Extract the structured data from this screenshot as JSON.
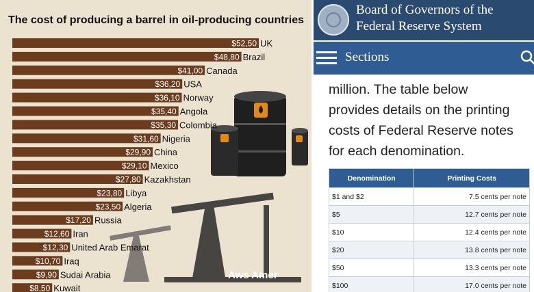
{
  "left": {
    "title": "The cost of producing a barrel in oil-producing countries",
    "watermark": "Aws Amer",
    "colors": {
      "bar": "#6b3c1d",
      "background": "#ece2d0"
    }
  },
  "chart_data": {
    "type": "bar",
    "orientation": "horizontal",
    "title": "The cost of producing a barrel in oil-producing countries",
    "categories": [
      "UK",
      "Brazil",
      "Canada",
      "USA",
      "Norway",
      "Angola",
      "Colombia",
      "Nigeria",
      "China",
      "Mexico",
      "Kazakhstan",
      "Libya",
      "Algeria",
      "Russia",
      "Iran",
      "United Arab Emarat",
      "Iraq",
      "Sudai Arabia",
      "Kuwait"
    ],
    "values": [
      52.5,
      48.8,
      41.0,
      36.2,
      36.1,
      35.4,
      35.3,
      31.6,
      29.9,
      29.1,
      27.8,
      23.8,
      23.5,
      17.2,
      12.6,
      12.3,
      10.7,
      9.9,
      8.5
    ],
    "value_labels": [
      "$52,50",
      "$48,80",
      "$41,00",
      "$36,20",
      "$36,10",
      "$35,40",
      "$35,30",
      "$31,60",
      "$29,90",
      "$29,10",
      "$27,80",
      "$23,80",
      "$23,50",
      "$17,20",
      "$12,60",
      "$12,30",
      "$10,70",
      "$9,90",
      "$8,50"
    ],
    "xlim": [
      0,
      52.5
    ],
    "grid": false,
    "legend": "none"
  },
  "fed": {
    "title_line1": "Board of Governors of the",
    "title_line2": "Federal Reserve System",
    "nav_label": "Sections",
    "paragraph_lines": [
      "million. The table below",
      "provides details on the printing",
      "costs of Federal Reserve notes",
      "for each denomination."
    ],
    "table": {
      "headers": [
        "Denomination",
        "Printing Costs"
      ],
      "rows": [
        [
          "$1 and $2",
          "7.5 cents per note"
        ],
        [
          "$5",
          "12.7 cents per note"
        ],
        [
          "$10",
          "12.4 cents per note"
        ],
        [
          "$20",
          "13.8 cents per note"
        ],
        [
          "$50",
          "13.3 cents per note"
        ],
        [
          "$100",
          "17.0 cents per note"
        ]
      ]
    },
    "colors": {
      "header": "#2b4a6f",
      "nav": "#2f5d93",
      "row_alt": "#eef2f7"
    },
    "icons": [
      "seal-icon",
      "menu-icon",
      "search-icon"
    ]
  }
}
